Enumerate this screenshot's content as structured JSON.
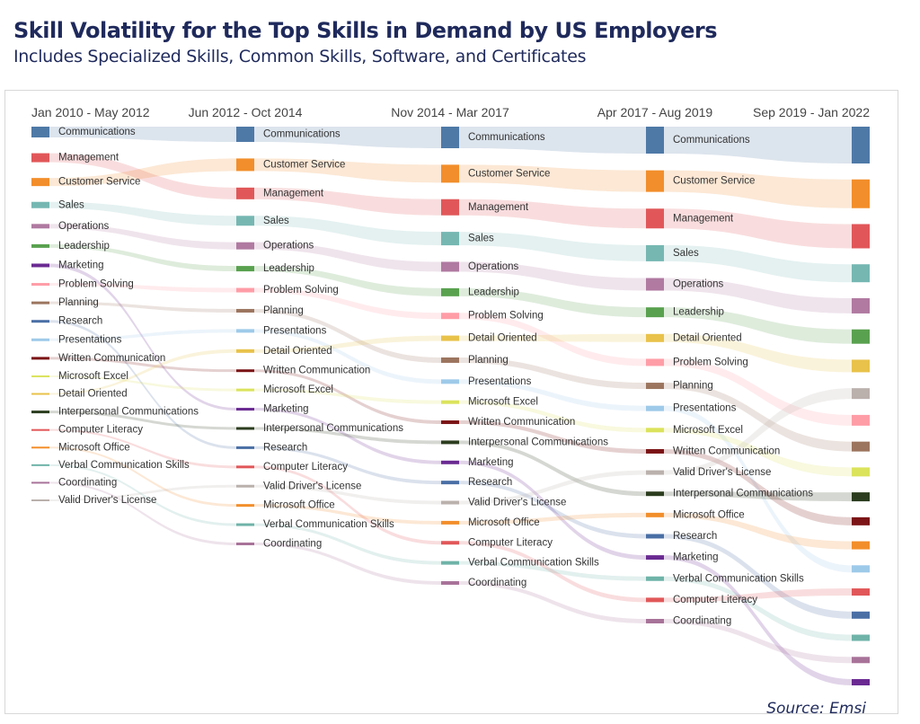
{
  "header": {
    "title": "Skill Volatility for the Top Skills in Demand by US Employers",
    "subtitle": "Includes Specialized Skills, Common Skills, Software, and Certificates"
  },
  "footer": {
    "source": "Source: Emsi"
  },
  "chart_data": {
    "type": "sankey",
    "title": "Skill Volatility for the Top Skills in Demand by US Employers",
    "periods": [
      "Jan 2010 - May 2012",
      "Jun 2012 - Oct 2014",
      "Nov 2014 - Mar 2017",
      "Apr 2017 - Aug 2019",
      "Sep 2019 - Jan 2022"
    ],
    "skill_colors": {
      "Communications": "#4e79a7",
      "Management": "#e15759",
      "Customer Service": "#f28e2b",
      "Sales": "#76b7b2",
      "Operations": "#b07aa1",
      "Leadership": "#59a14f",
      "Marketing": "#6a2a92",
      "Problem Solving": "#ff9da7",
      "Planning": "#9c755f",
      "Research": "#4a6fa5",
      "Presentations": "#9ecae9",
      "Written Communication": "#7b1416",
      "Microsoft Excel": "#dbe35c",
      "Detail Oriented": "#e8c24a",
      "Interpersonal Communications": "#2b3d1e",
      "Computer Literacy": "#e15759",
      "Microsoft Office": "#f28e2b",
      "Verbal Communication Skills": "#6fb3a8",
      "Coordinating": "#a87399",
      "Valid Driver's License": "#bab0ac"
    },
    "rankings": [
      {
        "period": "Jan 2010 - May 2012",
        "skills": [
          "Communications",
          "Management",
          "Customer Service",
          "Sales",
          "Operations",
          "Leadership",
          "Marketing",
          "Problem Solving",
          "Planning",
          "Research",
          "Presentations",
          "Written Communication",
          "Microsoft Excel",
          "Detail Oriented",
          "Interpersonal Communications",
          "Computer Literacy",
          "Microsoft Office",
          "Verbal Communication Skills",
          "Coordinating",
          "Valid Driver's License"
        ],
        "relative_volume": [
          12,
          10,
          9,
          7,
          5,
          4,
          4,
          3,
          3,
          3,
          3,
          3,
          2,
          2,
          3,
          2,
          2,
          2,
          2,
          2
        ]
      },
      {
        "period": "Jun 2012 - Oct 2014",
        "skills": [
          "Communications",
          "Customer Service",
          "Management",
          "Sales",
          "Operations",
          "Leadership",
          "Problem Solving",
          "Planning",
          "Presentations",
          "Detail Oriented",
          "Written Communication",
          "Microsoft Excel",
          "Marketing",
          "Interpersonal Communications",
          "Research",
          "Computer Literacy",
          "Valid Driver's License",
          "Microsoft Office",
          "Verbal Communication Skills",
          "Coordinating"
        ],
        "relative_volume": [
          17,
          14,
          13,
          11,
          8,
          6,
          5,
          4,
          4,
          4,
          3,
          3,
          3,
          3,
          3,
          3,
          3,
          3,
          3,
          3
        ]
      },
      {
        "period": "Nov 2014 - Mar 2017",
        "skills": [
          "Communications",
          "Customer Service",
          "Management",
          "Sales",
          "Operations",
          "Leadership",
          "Problem Solving",
          "Detail Oriented",
          "Planning",
          "Presentations",
          "Microsoft Excel",
          "Written Communication",
          "Interpersonal Communications",
          "Marketing",
          "Research",
          "Valid Driver's License",
          "Microsoft Office",
          "Computer Literacy",
          "Verbal Communication Skills",
          "Coordinating"
        ],
        "relative_volume": [
          24,
          20,
          18,
          15,
          11,
          9,
          7,
          6,
          6,
          5,
          4,
          4,
          4,
          4,
          4,
          4,
          4,
          4,
          4,
          4
        ]
      },
      {
        "period": "Apr 2017 - Aug 2019",
        "skills": [
          "Communications",
          "Customer Service",
          "Management",
          "Sales",
          "Operations",
          "Leadership",
          "Detail Oriented",
          "Problem Solving",
          "Planning",
          "Presentations",
          "Microsoft Excel",
          "Written Communication",
          "Valid Driver's License",
          "Interpersonal Communications",
          "Microsoft Office",
          "Research",
          "Marketing",
          "Verbal Communication Skills",
          "Computer Literacy",
          "Coordinating"
        ],
        "relative_volume": [
          30,
          24,
          22,
          18,
          14,
          11,
          9,
          8,
          7,
          6,
          5,
          5,
          5,
          5,
          5,
          5,
          5,
          5,
          5,
          5
        ]
      },
      {
        "period": "Sep 2019 - Jan 2022",
        "skills": [
          "Communications",
          "Customer Service",
          "Management",
          "Sales",
          "Operations",
          "Leadership",
          "Detail Oriented",
          "Valid Driver's License",
          "Problem Solving",
          "Planning",
          "Microsoft Excel",
          "Interpersonal Communications",
          "Written Communication",
          "Microsoft Office",
          "Presentations",
          "Computer Literacy",
          "Research",
          "Verbal Communication Skills",
          "Coordinating",
          "Marketing"
        ],
        "relative_volume": [
          41,
          32,
          27,
          20,
          17,
          16,
          14,
          12,
          12,
          11,
          10,
          10,
          9,
          9,
          8,
          8,
          8,
          7,
          7,
          7
        ]
      }
    ],
    "node_labels_shown_for_periods": [
      0,
      1,
      2,
      3
    ]
  }
}
